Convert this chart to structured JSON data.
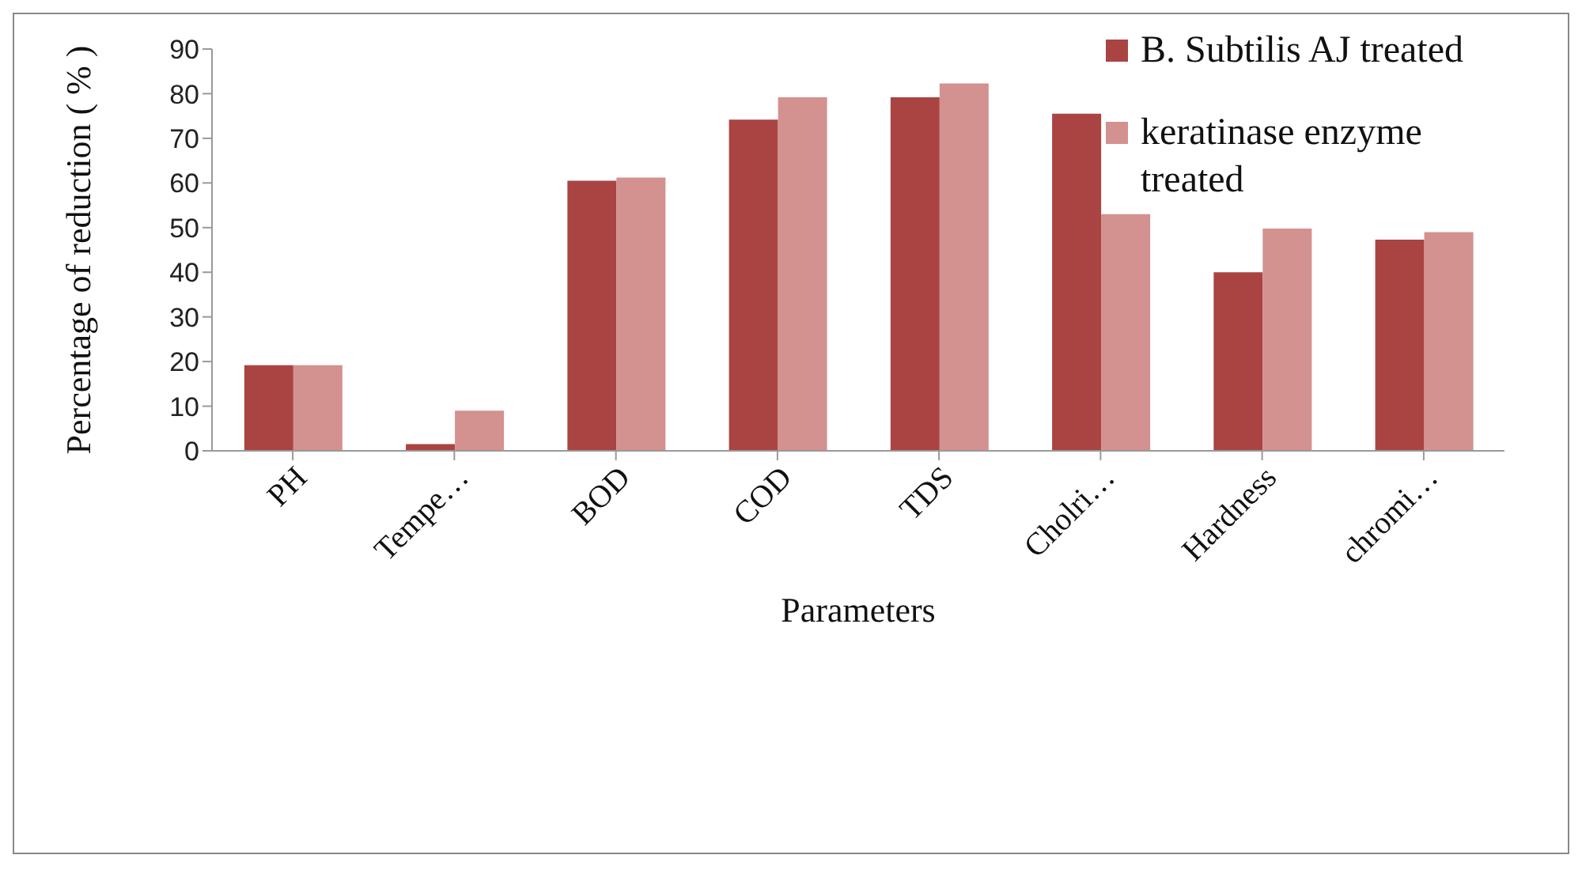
{
  "chart_data": {
    "type": "bar",
    "xlabel": "Parameters",
    "ylabel": "Percentage of reduction ( % )",
    "categories": [
      "PH",
      "Tempe…",
      "BOD",
      "COD",
      "TDS",
      "Cholri…",
      "Hardness",
      "chromi…"
    ],
    "series": [
      {
        "name": "B. Subtilis AJ treated",
        "color": "#a94442",
        "values": [
          19.2,
          1.5,
          60.5,
          74.2,
          79.2,
          75.5,
          40,
          47.3
        ]
      },
      {
        "name": "keratinase enzyme treated",
        "color": "#d39190",
        "values": [
          19.2,
          9,
          61.2,
          79.2,
          82.3,
          53,
          49.8,
          49
        ]
      }
    ],
    "ylim": [
      0,
      90
    ],
    "yticks": [
      0,
      10,
      20,
      30,
      40,
      50,
      60,
      70,
      80,
      90
    ],
    "grid": false,
    "legend": "top right"
  }
}
